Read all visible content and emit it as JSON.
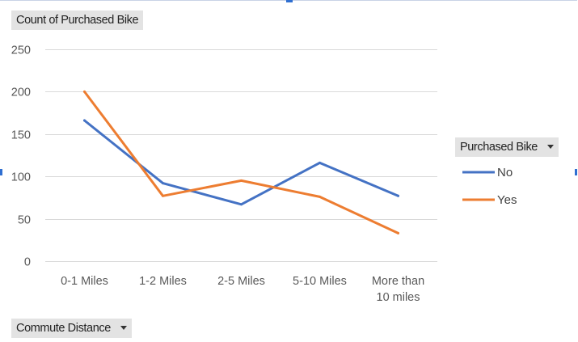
{
  "chart_data": {
    "type": "line",
    "title": "",
    "value_field_label": "Count of Purchased Bike",
    "axis_field_label": "Commute Distance",
    "legend_field_label": "Purchased Bike",
    "categories": [
      "0-1 Miles",
      "1-2 Miles",
      "2-5 Miles",
      "5-10 Miles",
      "More than 10 miles"
    ],
    "category_label_lines": [
      [
        "0-1 Miles"
      ],
      [
        "1-2 Miles"
      ],
      [
        "2-5 Miles"
      ],
      [
        "5-10 Miles"
      ],
      [
        "More than",
        "10 miles"
      ]
    ],
    "series": [
      {
        "name": "No",
        "values": [
          166,
          92,
          67,
          116,
          77
        ],
        "color": "#4472c4"
      },
      {
        "name": "Yes",
        "values": [
          200,
          77,
          95,
          76,
          33
        ],
        "color": "#ed7d31"
      }
    ],
    "ylim": [
      0,
      250
    ],
    "yticks": [
      0,
      50,
      100,
      150,
      200,
      250
    ],
    "grid": true,
    "legend_position": "right"
  }
}
